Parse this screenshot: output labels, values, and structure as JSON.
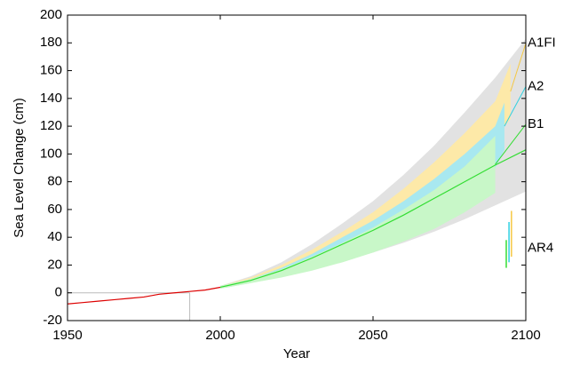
{
  "chart_data": {
    "type": "line",
    "xlabel": "Year",
    "ylabel": "Sea Level Change (cm)",
    "xlim": [
      1950,
      2100
    ],
    "xticks": [
      1950,
      2000,
      2050,
      2100
    ],
    "ylim": [
      -20,
      200
    ],
    "yticks": [
      -20,
      0,
      20,
      40,
      60,
      80,
      100,
      120,
      140,
      160,
      180,
      200
    ],
    "reference_lines": {
      "y": 0,
      "x": 1990
    },
    "bands": [
      {
        "color": "#e2e2e2",
        "x": [
          2000,
          2010,
          2020,
          2030,
          2040,
          2050,
          2060,
          2070,
          2080,
          2090,
          2100
        ],
        "upper": [
          5,
          12,
          22,
          35,
          50,
          66,
          85,
          106,
          130,
          155,
          183
        ],
        "lower": [
          3,
          7,
          12,
          17,
          23,
          29,
          36,
          44,
          53,
          63,
          73
        ]
      },
      {
        "name": "A1FI",
        "color": "#fde9a8",
        "label_color": "#f5c842",
        "x": [
          2000,
          2010,
          2020,
          2030,
          2040,
          2050,
          2060,
          2070,
          2080,
          2090,
          2095
        ],
        "upper": [
          5,
          11,
          20,
          31,
          44,
          58,
          75,
          94,
          115,
          138,
          165
        ],
        "lower": [
          4,
          9,
          16,
          25,
          36,
          48,
          62,
          78,
          95,
          113,
          125
        ]
      },
      {
        "name": "A2",
        "color": "#a8e8f0",
        "label_color": "#30d0e0",
        "x": [
          2000,
          2010,
          2020,
          2030,
          2040,
          2050,
          2060,
          2070,
          2080,
          2090,
          2093
        ],
        "upper": [
          5,
          10,
          18,
          28,
          40,
          52,
          66,
          82,
          100,
          120,
          137
        ],
        "lower": [
          3,
          8,
          14,
          21,
          29,
          38,
          49,
          61,
          75,
          90,
          103
        ]
      },
      {
        "name": "B1",
        "color": "#c8f7c8",
        "label_color": "#33dd33",
        "x": [
          2000,
          2010,
          2020,
          2030,
          2040,
          2050,
          2060,
          2070,
          2080,
          2090
        ],
        "upper": [
          5,
          10,
          17,
          26,
          36,
          47,
          60,
          74,
          91,
          113
        ],
        "lower": [
          3,
          7,
          11,
          16,
          22,
          29,
          37,
          46,
          58,
          72
        ]
      }
    ],
    "series": [
      {
        "color": "#33dd33",
        "x": [
          2000,
          2010,
          2020,
          2030,
          2040,
          2050,
          2060,
          2070,
          2080,
          2090,
          2100
        ],
        "values": [
          4,
          9,
          16,
          25,
          35,
          45,
          56,
          68,
          80,
          92,
          103
        ]
      },
      {
        "color": "#dd0000",
        "x": [
          1950,
          1955,
          1960,
          1965,
          1970,
          1975,
          1980,
          1985,
          1990,
          1995,
          2000
        ],
        "values": [
          -8,
          -7,
          -6,
          -5,
          -4,
          -3,
          -1,
          0,
          1,
          2,
          4
        ]
      }
    ],
    "ar4": {
      "name": "AR4",
      "bars": [
        {
          "color": "#33dd33",
          "x": 2093.6,
          "low": 18,
          "high": 38
        },
        {
          "color": "#30d0e0",
          "x": 2094.5,
          "low": 22,
          "high": 51
        },
        {
          "color": "#f5c842",
          "x": 2095.3,
          "low": 26,
          "high": 59
        }
      ]
    }
  }
}
